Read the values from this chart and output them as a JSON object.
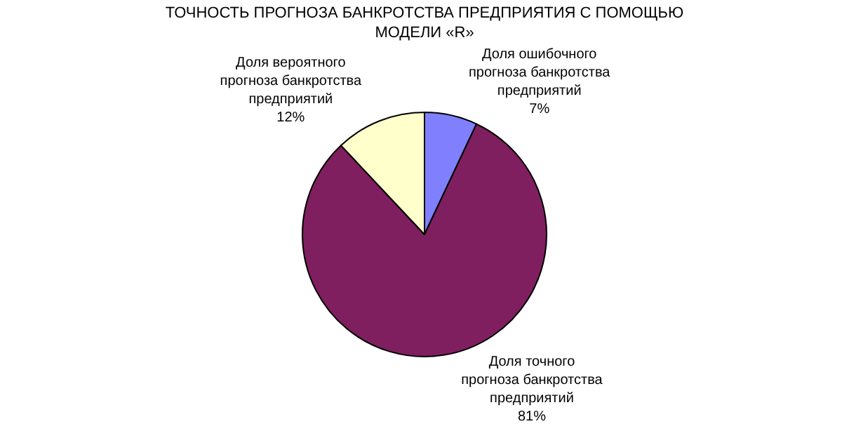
{
  "chart_data": {
    "type": "pie",
    "title": "ТОЧНОСТЬ ПРОГНОЗА БАНКРОТСТВА ПРЕДПРИЯТИЯ С ПОМОЩЬЮ МОДЕЛИ «R»",
    "categories": [
      "Доля ошибочного прогноза банкротства предприятий",
      "Доля точного прогноза банкротства предприятий",
      "Доля вероятного прогноза банкротства предприятий"
    ],
    "values": [
      7,
      81,
      12
    ],
    "value_labels": [
      "7%",
      "81%",
      "12%"
    ],
    "colors": [
      "#8080ff",
      "#7f1f5f",
      "#ffffcc"
    ],
    "legend": false
  }
}
